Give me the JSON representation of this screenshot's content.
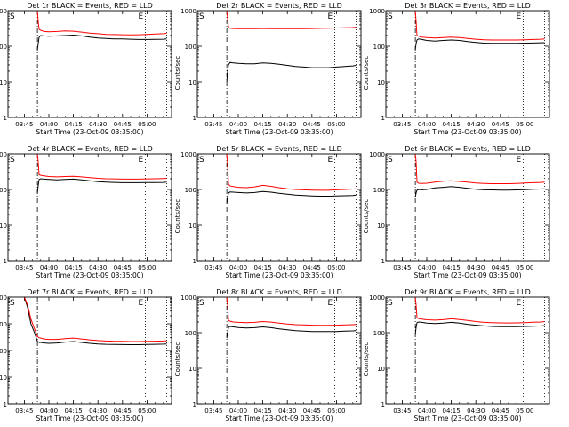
{
  "figure": {
    "xlabel": "Start Time (23-Oct-09 03:35:00)",
    "ylabel": "Counts/sec",
    "x_ticks": [
      "03:45",
      "04:00",
      "04:15",
      "04:30",
      "04:45",
      "05:00"
    ],
    "x_tick_minutes": [
      10,
      25,
      40,
      55,
      70,
      85
    ],
    "x_range_minutes": [
      0,
      100
    ],
    "marker_S": "S",
    "marker_E": "E",
    "marker_S_minutes": 18,
    "marker_E_minutes": 84,
    "marker_end_minutes": 97,
    "colors": {
      "events": "#000000",
      "lld": "#ff0000",
      "axes": "#000000"
    }
  },
  "chart_data": [
    {
      "type": "line",
      "title": "Det 1r BLACK = Events, RED = LLD",
      "yscale": "log",
      "ylim": [
        1,
        1000
      ],
      "yticks": [
        "1",
        "10",
        "100",
        "1000"
      ],
      "x": [
        18,
        18.5,
        19,
        20,
        22,
        25,
        30,
        35,
        40,
        45,
        50,
        55,
        60,
        65,
        70,
        75,
        80,
        85,
        90,
        95,
        97
      ],
      "series": [
        {
          "values": [
            80,
            120,
            180,
            200,
            195,
            190,
            195,
            200,
            205,
            195,
            180,
            170,
            165,
            160,
            160,
            158,
            155,
            155,
            157,
            158,
            160
          ]
        },
        {
          "values": [
            1000,
            500,
            300,
            280,
            260,
            255,
            260,
            270,
            265,
            250,
            235,
            225,
            215,
            212,
            210,
            208,
            210,
            215,
            220,
            225,
            230
          ]
        }
      ]
    },
    {
      "type": "line",
      "title": "Det 2r BLACK = Events, RED = LLD",
      "yscale": "log",
      "ylim": [
        1,
        1000
      ],
      "yticks": [
        "1",
        "10",
        "100",
        "1000"
      ],
      "x": [
        18,
        18.5,
        19,
        20,
        22,
        25,
        30,
        35,
        40,
        45,
        50,
        55,
        60,
        65,
        70,
        75,
        80,
        85,
        90,
        95,
        97
      ],
      "series": [
        {
          "values": [
            10,
            20,
            30,
            35,
            34,
            33,
            32,
            32,
            34,
            33,
            31,
            29,
            27,
            26,
            25,
            25,
            25,
            26,
            27,
            28,
            29
          ]
        },
        {
          "values": [
            1000,
            600,
            340,
            320,
            315,
            310,
            310,
            312,
            315,
            313,
            312,
            310,
            310,
            312,
            315,
            318,
            320,
            325,
            330,
            335,
            340
          ]
        }
      ]
    },
    {
      "type": "line",
      "title": "Det 3r BLACK = Events, RED = LLD",
      "yscale": "log",
      "ylim": [
        1,
        1000
      ],
      "yticks": [
        "1",
        "10",
        "100",
        "1000"
      ],
      "x": [
        18,
        18.5,
        19,
        20,
        22,
        25,
        30,
        35,
        40,
        45,
        50,
        55,
        60,
        65,
        70,
        75,
        80,
        85,
        90,
        95,
        97
      ],
      "series": [
        {
          "values": [
            80,
            120,
            150,
            160,
            155,
            145,
            140,
            145,
            150,
            145,
            135,
            128,
            122,
            120,
            120,
            120,
            120,
            122,
            123,
            125,
            126
          ]
        },
        {
          "values": [
            1000,
            500,
            200,
            190,
            180,
            175,
            170,
            175,
            180,
            175,
            165,
            158,
            152,
            150,
            150,
            150,
            150,
            152,
            155,
            158,
            160
          ]
        }
      ]
    },
    {
      "type": "line",
      "title": "Det 4r BLACK = Events, RED = LLD",
      "yscale": "log",
      "ylim": [
        1,
        1000
      ],
      "yticks": [
        "1",
        "10",
        "100",
        "1000"
      ],
      "x": [
        18,
        18.5,
        19,
        20,
        22,
        25,
        30,
        35,
        40,
        45,
        50,
        55,
        60,
        65,
        70,
        75,
        80,
        85,
        90,
        95,
        97
      ],
      "series": [
        {
          "values": [
            80,
            130,
            190,
            200,
            195,
            190,
            185,
            190,
            195,
            185,
            175,
            165,
            160,
            158,
            155,
            155,
            155,
            156,
            157,
            158,
            160
          ]
        },
        {
          "values": [
            1000,
            600,
            260,
            250,
            240,
            230,
            225,
            230,
            235,
            225,
            215,
            205,
            200,
            198,
            195,
            195,
            195,
            198,
            200,
            203,
            205
          ]
        }
      ]
    },
    {
      "type": "line",
      "title": "Det 5r BLACK = Events, RED = LLD",
      "yscale": "log",
      "ylim": [
        1,
        1000
      ],
      "yticks": [
        "1",
        "10",
        "100",
        "1000"
      ],
      "x": [
        18,
        18.5,
        19,
        20,
        22,
        25,
        30,
        35,
        40,
        45,
        50,
        55,
        60,
        65,
        70,
        75,
        80,
        85,
        90,
        95,
        97
      ],
      "series": [
        {
          "values": [
            40,
            60,
            80,
            85,
            84,
            82,
            80,
            82,
            88,
            84,
            78,
            74,
            70,
            68,
            66,
            65,
            65,
            66,
            67,
            68,
            70
          ]
        },
        {
          "values": [
            1000,
            500,
            140,
            125,
            120,
            115,
            112,
            118,
            130,
            122,
            112,
            105,
            100,
            98,
            96,
            95,
            95,
            98,
            100,
            103,
            105
          ]
        }
      ]
    },
    {
      "type": "line",
      "title": "Det 6r BLACK = Events, RED = LLD",
      "yscale": "log",
      "ylim": [
        1,
        1000
      ],
      "yticks": [
        "1",
        "10",
        "100",
        "1000"
      ],
      "x": [
        18,
        18.5,
        19,
        20,
        22,
        25,
        30,
        35,
        40,
        45,
        50,
        55,
        60,
        65,
        70,
        75,
        80,
        85,
        90,
        95,
        97
      ],
      "series": [
        {
          "values": [
            60,
            80,
            95,
            100,
            98,
            100,
            110,
            115,
            120,
            115,
            108,
            102,
            98,
            97,
            96,
            96,
            97,
            99,
            101,
            103,
            105
          ]
        },
        {
          "values": [
            1000,
            600,
            160,
            150,
            148,
            150,
            160,
            170,
            175,
            168,
            160,
            152,
            148,
            145,
            145,
            145,
            148,
            152,
            155,
            158,
            160
          ]
        }
      ]
    },
    {
      "type": "line",
      "title": "Det 7r BLACK = Events, RED = LLD",
      "yscale": "log",
      "ylim": [
        1,
        10000
      ],
      "yticks": [
        "1",
        "10",
        "100",
        "1000",
        "10000"
      ],
      "x": [
        10,
        12,
        14,
        16,
        18,
        19,
        20,
        22,
        25,
        30,
        35,
        40,
        45,
        50,
        55,
        60,
        65,
        70,
        75,
        80,
        85,
        90,
        95,
        97
      ],
      "series": [
        {
          "values": [
            10000,
            4000,
            1000,
            500,
            220,
            200,
            200,
            190,
            185,
            190,
            205,
            215,
            200,
            185,
            175,
            170,
            168,
            166,
            165,
            165,
            168,
            170,
            172,
            175
          ]
        },
        {
          "values": [
            10000,
            5000,
            1500,
            700,
            330,
            300,
            290,
            270,
            260,
            260,
            275,
            290,
            270,
            250,
            235,
            225,
            220,
            218,
            215,
            215,
            218,
            222,
            225,
            230
          ]
        }
      ]
    },
    {
      "type": "line",
      "title": "Det 8r BLACK = Events, RED = LLD",
      "yscale": "log",
      "ylim": [
        1,
        1000
      ],
      "yticks": [
        "1",
        "10",
        "100",
        "1000"
      ],
      "x": [
        18,
        18.5,
        19,
        20,
        22,
        25,
        30,
        35,
        40,
        45,
        50,
        55,
        60,
        65,
        70,
        75,
        80,
        85,
        90,
        95,
        97
      ],
      "series": [
        {
          "values": [
            70,
            100,
            140,
            150,
            145,
            140,
            135,
            138,
            145,
            138,
            128,
            120,
            114,
            110,
            108,
            107,
            107,
            108,
            110,
            112,
            114
          ]
        },
        {
          "values": [
            1000,
            600,
            220,
            210,
            200,
            195,
            190,
            195,
            205,
            198,
            185,
            175,
            168,
            165,
            162,
            160,
            160,
            162,
            165,
            168,
            170
          ]
        }
      ]
    },
    {
      "type": "line",
      "title": "Det 9r BLACK = Events, RED = LLD",
      "yscale": "log",
      "ylim": [
        1,
        1000
      ],
      "yticks": [
        "1",
        "10",
        "100",
        "1000"
      ],
      "x": [
        18,
        18.5,
        19,
        20,
        22,
        25,
        30,
        35,
        40,
        45,
        50,
        55,
        60,
        65,
        70,
        75,
        80,
        85,
        90,
        95,
        97
      ],
      "series": [
        {
          "values": [
            90,
            140,
            190,
            200,
            195,
            185,
            180,
            185,
            195,
            185,
            172,
            162,
            155,
            150,
            148,
            147,
            147,
            150,
            152,
            155,
            158
          ]
        },
        {
          "values": [
            1000,
            600,
            260,
            250,
            240,
            230,
            225,
            232,
            245,
            235,
            220,
            205,
            195,
            190,
            188,
            187,
            188,
            192,
            196,
            200,
            205
          ]
        }
      ]
    }
  ]
}
